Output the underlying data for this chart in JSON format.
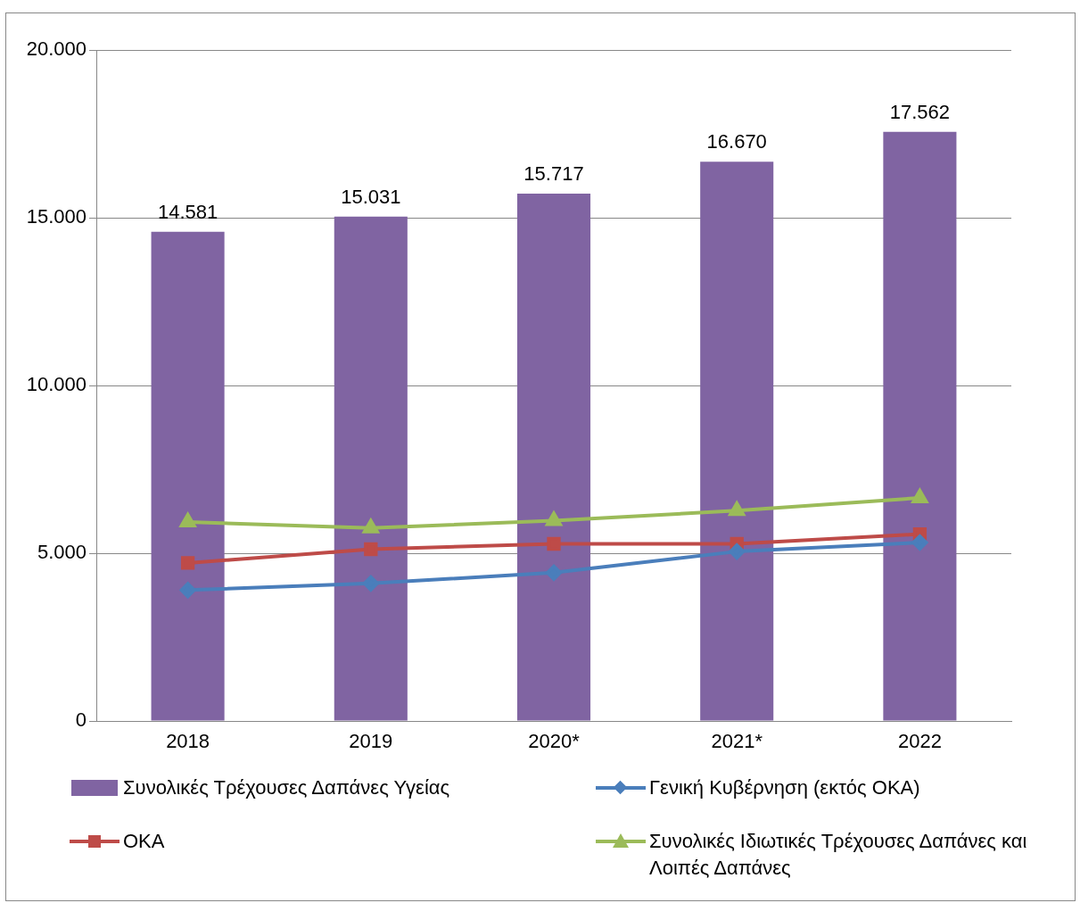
{
  "chart_data": {
    "type": "bar",
    "categories": [
      "2018",
      "2019",
      "2020*",
      "2021*",
      "2022"
    ],
    "series": [
      {
        "name": "Συνολικές Τρέχουσες Δαπάνες Υγείας",
        "type": "bar",
        "color": "#8064a2",
        "values": [
          14581,
          15031,
          15717,
          16670,
          17562
        ],
        "value_labels": [
          "14.581",
          "15.031",
          "15.717",
          "16.670",
          "17.562"
        ]
      },
      {
        "name": "Γενική Κυβέρνηση (εκτός ΟΚΑ)",
        "type": "line",
        "color": "#4a7ebb",
        "marker": "diamond",
        "values": [
          3900,
          4100,
          4420,
          5050,
          5320
        ]
      },
      {
        "name": "ΟΚΑ",
        "type": "line",
        "color": "#be4b48",
        "marker": "square",
        "values": [
          4710,
          5120,
          5280,
          5280,
          5570
        ]
      },
      {
        "name": "Συνολικές Ιδιωτικές Τρέχουσες Δαπάνες και Λοιπές Δαπάνες",
        "type": "line",
        "color": "#9bbb59",
        "marker": "triangle",
        "values": [
          5930,
          5750,
          5970,
          6270,
          6650
        ]
      }
    ],
    "ylim": [
      0,
      20000
    ],
    "yticks": [
      {
        "value": 0,
        "label": "0"
      },
      {
        "value": 5000,
        "label": "5.000"
      },
      {
        "value": 10000,
        "label": "10.000"
      },
      {
        "value": 15000,
        "label": "15.000"
      },
      {
        "value": 20000,
        "label": "20.000"
      }
    ],
    "grid": "y",
    "legend": "bottom"
  }
}
